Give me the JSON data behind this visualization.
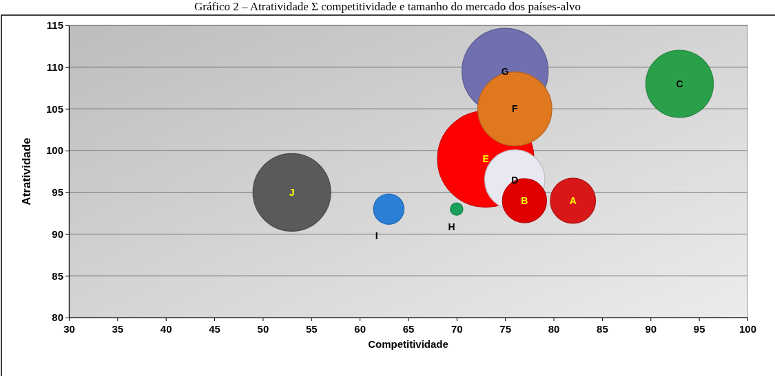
{
  "chart_data": {
    "type": "bubble",
    "title": "Gráfico 2 – Atratividade Σ competitividade e tamanho do mercado dos países-alvo",
    "xlabel": "Competitividade",
    "ylabel": "Atratividade",
    "xlim": [
      30,
      100
    ],
    "xticks": [
      30,
      35,
      40,
      45,
      50,
      55,
      60,
      65,
      70,
      75,
      80,
      85,
      90,
      95,
      100
    ],
    "ylim": [
      80,
      115
    ],
    "yticks": [
      80,
      85,
      90,
      95,
      100,
      105,
      110,
      115
    ],
    "grid": "y",
    "series": [
      {
        "name": "J",
        "color": "#5a5a5a",
        "x": [
          53
        ],
        "values": [
          95
        ],
        "sizes": [
          0.65
        ]
      },
      {
        "name": "I",
        "color": "#2b7fd6",
        "x": [
          63
        ],
        "values": [
          93
        ],
        "sizes": [
          0.1
        ]
      },
      {
        "name": "H",
        "color": "#1aa05a",
        "x": [
          70
        ],
        "values": [
          93
        ],
        "sizes": [
          0.017
        ]
      },
      {
        "name": "G",
        "color": "#7070b0",
        "x": [
          75
        ],
        "values": [
          109.5
        ],
        "sizes": [
          0.8
        ]
      },
      {
        "name": "E",
        "color": "#ff0000",
        "x": [
          73
        ],
        "values": [
          99
        ],
        "sizes": [
          1
        ]
      },
      {
        "name": "F",
        "color": "#e07820",
        "x": [
          76
        ],
        "values": [
          105
        ],
        "sizes": [
          0.59
        ]
      },
      {
        "name": "D",
        "color": "#e8e8f0",
        "x": [
          76
        ],
        "values": [
          96.5
        ],
        "sizes": [
          0.39
        ]
      },
      {
        "name": "B",
        "color": "#e00000",
        "x": [
          77
        ],
        "values": [
          94
        ],
        "sizes": [
          0.21
        ]
      },
      {
        "name": "A",
        "color": "#d81818",
        "x": [
          82
        ],
        "values": [
          94
        ],
        "sizes": [
          0.22
        ]
      },
      {
        "name": "C",
        "color": "#2aa04a",
        "x": [
          93
        ],
        "values": [
          108
        ],
        "sizes": [
          0.49
        ]
      }
    ]
  }
}
